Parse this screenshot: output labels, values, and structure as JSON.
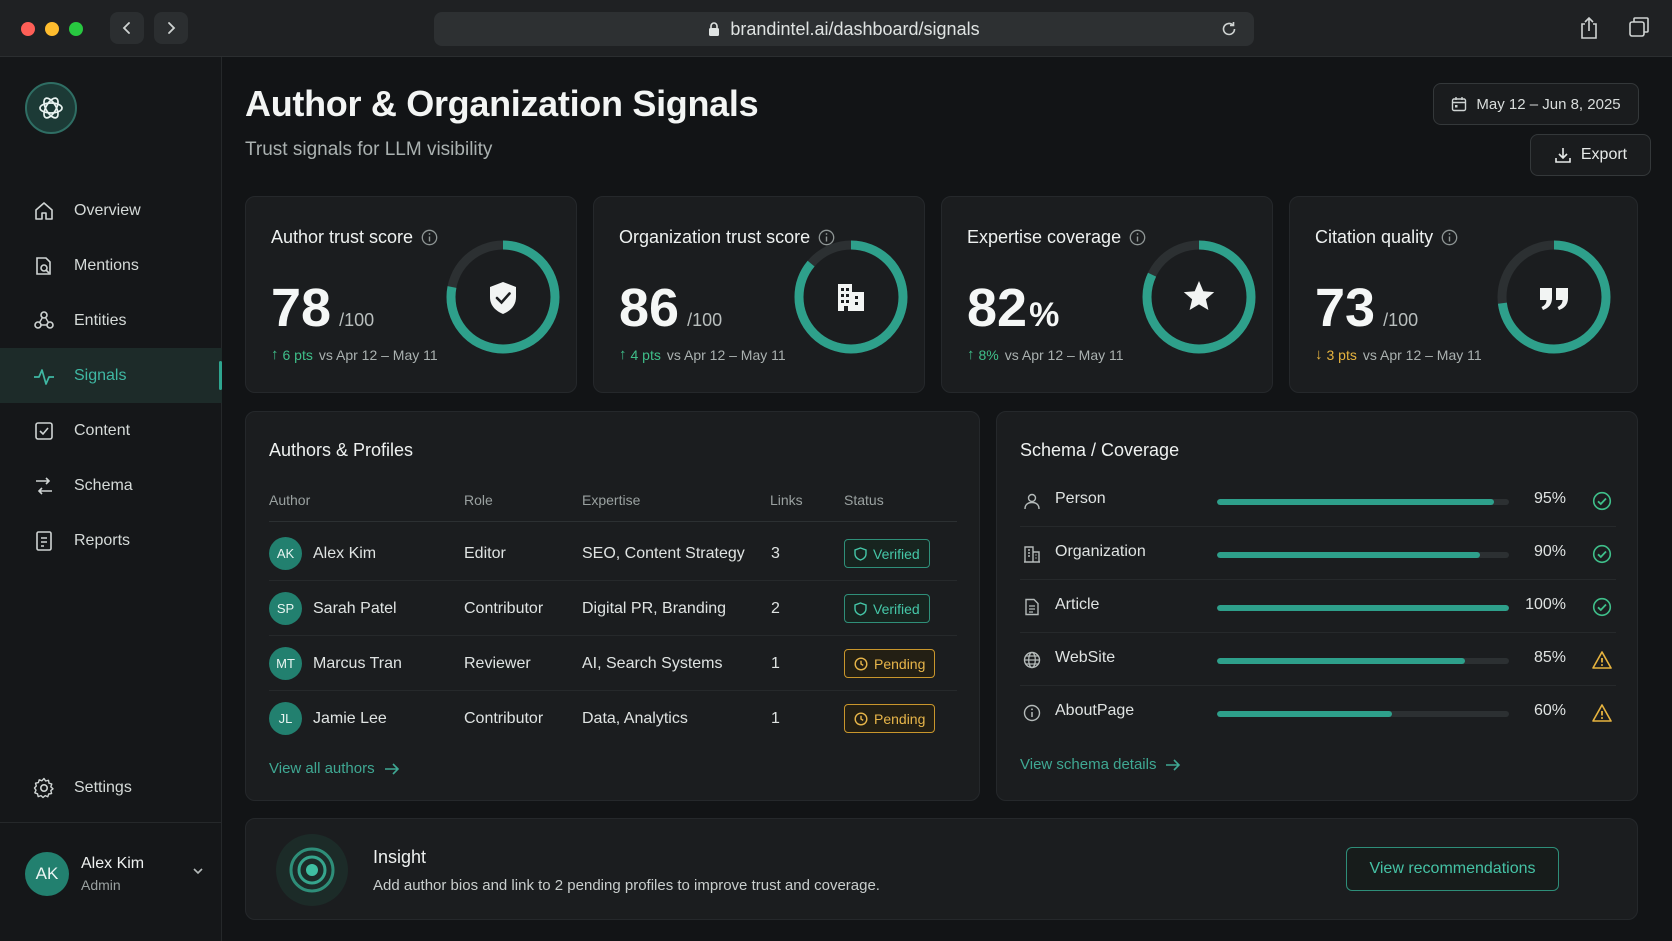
{
  "browser": {
    "url": "brandintel.ai/dashboard/signals"
  },
  "sidebar": {
    "items": [
      {
        "label": "Overview",
        "icon": "home-icon"
      },
      {
        "label": "Mentions",
        "icon": "mentions-icon"
      },
      {
        "label": "Entities",
        "icon": "entities-icon"
      },
      {
        "label": "Signals",
        "icon": "signals-icon",
        "active": true
      },
      {
        "label": "Content",
        "icon": "content-icon"
      },
      {
        "label": "Schema",
        "icon": "schema-icon"
      },
      {
        "label": "Reports",
        "icon": "reports-icon"
      }
    ],
    "settings_label": "Settings",
    "user": {
      "initials": "AK",
      "name": "Alex Kim",
      "role": "Admin"
    }
  },
  "header": {
    "title": "Author & Organization Signals",
    "subtitle": "Trust signals for LLM visibility",
    "date_range": "May 12 – Jun 8, 2025",
    "export_label": "Export"
  },
  "kpis": [
    {
      "label": "Author trust score",
      "value": "78",
      "unit": "/100",
      "delta": "6 pts",
      "direction": "up",
      "compare": "vs Apr 12 – May 11",
      "progress": 0.78,
      "icon": "shield-check-icon"
    },
    {
      "label": "Organization trust score",
      "value": "86",
      "unit": "/100",
      "delta": "4 pts",
      "direction": "up",
      "compare": "vs Apr 12 – May 11",
      "progress": 0.86,
      "icon": "building-icon"
    },
    {
      "label": "Expertise coverage",
      "value": "82",
      "unit": "%",
      "delta": "8%",
      "direction": "up",
      "compare": "vs Apr 12 – May 11",
      "progress": 0.82,
      "icon": "star-icon"
    },
    {
      "label": "Citation quality",
      "value": "73",
      "unit": "/100",
      "delta": "3 pts",
      "direction": "down",
      "compare": "vs Apr 12 – May 11",
      "progress": 0.73,
      "icon": "quote-icon"
    }
  ],
  "authors": {
    "title": "Authors & Profiles",
    "columns": [
      "Author",
      "Role",
      "Expertise",
      "Links",
      "Status"
    ],
    "rows": [
      {
        "initials": "AK",
        "name": "Alex Kim",
        "role": "Editor",
        "expertise": "SEO, Content Strategy",
        "links": "3",
        "status": "Verified"
      },
      {
        "initials": "SP",
        "name": "Sarah Patel",
        "role": "Contributor",
        "expertise": "Digital PR, Branding",
        "links": "2",
        "status": "Verified"
      },
      {
        "initials": "MT",
        "name": "Marcus Tran",
        "role": "Reviewer",
        "expertise": "AI, Search Systems",
        "links": "1",
        "status": "Pending"
      },
      {
        "initials": "JL",
        "name": "Jamie Lee",
        "role": "Contributor",
        "expertise": "Data, Analytics",
        "links": "1",
        "status": "Pending"
      }
    ],
    "view_all": "View all authors"
  },
  "schema": {
    "title": "Schema / Coverage",
    "rows": [
      {
        "label": "Person",
        "pct": "95%",
        "value": 0.95,
        "status": "ok",
        "icon": "person-icon"
      },
      {
        "label": "Organization",
        "pct": "90%",
        "value": 0.9,
        "status": "ok",
        "icon": "building-icon"
      },
      {
        "label": "Article",
        "pct": "100%",
        "value": 1.0,
        "status": "ok",
        "icon": "document-icon"
      },
      {
        "label": "WebSite",
        "pct": "85%",
        "value": 0.85,
        "status": "warn",
        "icon": "globe-icon"
      },
      {
        "label": "AboutPage",
        "pct": "60%",
        "value": 0.6,
        "status": "warn",
        "icon": "info-icon"
      }
    ],
    "view_details": "View schema details"
  },
  "insight": {
    "title": "Insight",
    "text": "Add author bios and link to 2 pending profiles to improve trust and coverage.",
    "button": "View recommendations"
  },
  "colors": {
    "accent": "#2ea08b",
    "ring_track": "#2c3032",
    "up": "#3fbf8a",
    "down": "#e7b43f",
    "ok": "#3fbf8a",
    "warn": "#e7b43f"
  }
}
